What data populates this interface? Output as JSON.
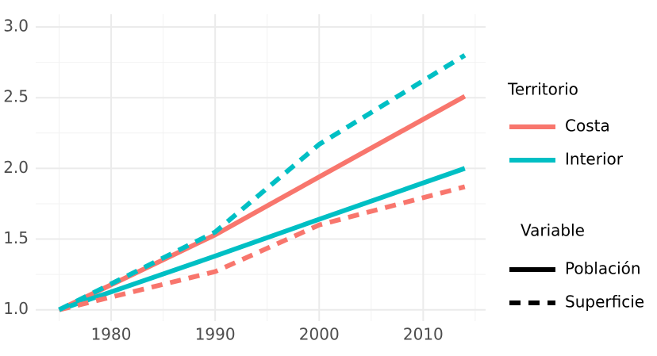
{
  "chart_data": {
    "type": "line",
    "x": [
      1975,
      1990,
      2000,
      2014
    ],
    "series": [
      {
        "color": "#f8766d",
        "dash": false,
        "values": [
          1.0,
          1.53,
          1.94,
          2.51
        ]
      },
      {
        "color": "#00bfc4",
        "dash": false,
        "values": [
          1.0,
          1.38,
          1.64,
          2.0
        ]
      },
      {
        "color": "#f8766d",
        "dash": true,
        "values": [
          1.0,
          1.27,
          1.6,
          1.87
        ]
      },
      {
        "color": "#00bfc4",
        "dash": true,
        "values": [
          1.0,
          1.55,
          2.17,
          2.8
        ]
      }
    ],
    "xlim": [
      1972.75,
      2016
    ],
    "ylim": [
      0.92,
      3.09
    ],
    "xticks": [
      1980,
      1990,
      2000,
      2010
    ],
    "minor_xticks": [
      1975,
      1985,
      1995,
      2005,
      2015
    ],
    "yticks": [
      {
        "value": 1,
        "label": "1.0"
      },
      1.5,
      {
        "value": 2,
        "label": "2.0"
      },
      2.5,
      {
        "value": 3,
        "label": "3.0"
      }
    ],
    "minor_yticks": [
      1.25,
      1.75,
      2.25,
      2.75
    ],
    "grid": true,
    "legend_territory": {
      "title": "Territorio",
      "items": [
        {
          "label": "Costa",
          "color": "#f8766d"
        },
        {
          "label": "Interior",
          "color": "#00bfc4"
        }
      ]
    },
    "legend_variable": {
      "title": "Variable",
      "items": [
        {
          "label": "Población",
          "dash": false
        },
        {
          "label": "Superficie",
          "dash": true
        }
      ]
    }
  }
}
